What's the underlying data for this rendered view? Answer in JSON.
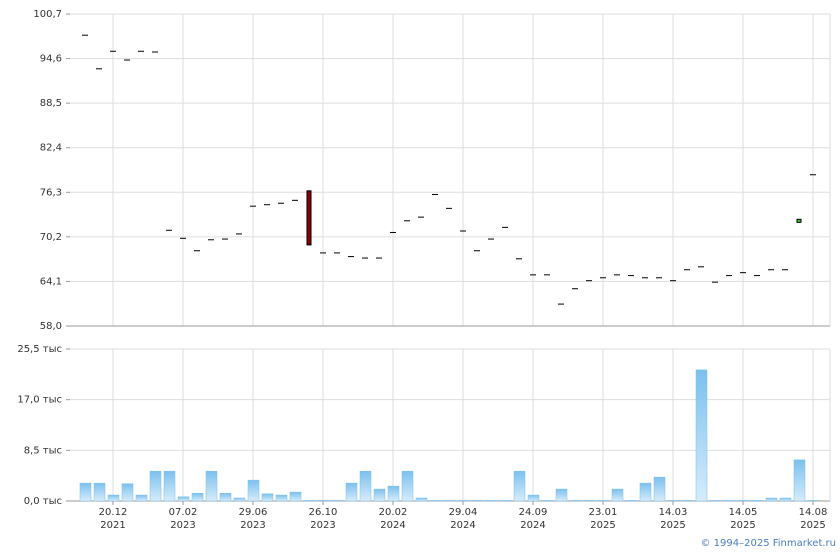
{
  "chart_data": [
    {
      "type": "candlestick",
      "open": [
        97.8,
        93.2,
        95.6,
        94.4,
        95.6,
        95.5,
        71.1,
        70.0,
        68.3,
        69.8,
        69.9,
        70.6,
        74.4,
        74.6,
        74.8,
        75.2,
        76.5,
        68.0,
        68.0,
        67.5,
        67.3,
        67.3,
        70.8,
        72.4,
        72.9,
        76.0,
        74.1,
        71.0,
        68.3,
        69.9,
        71.5,
        67.2,
        65.0,
        65.0,
        61.0,
        63.1,
        64.2,
        64.6,
        65.0,
        64.9,
        64.6,
        64.6,
        64.2,
        65.7,
        66.1,
        64.0,
        64.9,
        65.3,
        64.9,
        65.7,
        65.7,
        72.2,
        78.7
      ],
      "close": [
        97.8,
        93.2,
        95.6,
        94.4,
        95.6,
        95.5,
        71.1,
        70.0,
        68.3,
        69.8,
        69.9,
        70.6,
        74.4,
        74.6,
        74.8,
        75.2,
        69.1,
        68.0,
        68.0,
        67.5,
        67.3,
        67.3,
        70.8,
        72.4,
        72.9,
        76.0,
        74.1,
        71.0,
        68.3,
        69.9,
        71.5,
        67.2,
        65.0,
        65.0,
        61.0,
        63.1,
        64.2,
        64.6,
        65.0,
        64.9,
        64.6,
        64.6,
        64.2,
        65.7,
        66.1,
        64.0,
        64.9,
        65.3,
        64.9,
        65.7,
        65.7,
        72.6,
        78.7
      ],
      "up_color": "#33cc33",
      "down_color": "#8b0000",
      "ylim": [
        58.0,
        100.7
      ],
      "yticks": [
        {
          "value": 58.0,
          "label": "58,0"
        },
        {
          "value": 64.1,
          "label": "64,1"
        },
        {
          "value": 70.2,
          "label": "70,2"
        },
        {
          "value": 76.3,
          "label": "76,3"
        },
        {
          "value": 82.4,
          "label": "82,4"
        },
        {
          "value": 88.5,
          "label": "88,5"
        },
        {
          "value": 94.6,
          "label": "94,6"
        },
        {
          "value": 100.7,
          "label": "100,7"
        }
      ],
      "grid": true
    },
    {
      "type": "bar",
      "categories": [
        null,
        null,
        "20.12 2021",
        null,
        null,
        null,
        null,
        "07.02 2023",
        null,
        null,
        null,
        null,
        "29.06 2023",
        null,
        null,
        null,
        null,
        "26.10 2023",
        null,
        null,
        null,
        null,
        "20.02 2024",
        null,
        null,
        null,
        null,
        "29.04 2024",
        null,
        null,
        null,
        null,
        "24.09 2024",
        null,
        null,
        null,
        null,
        "23.01 2025",
        null,
        null,
        null,
        null,
        "14.03 2025",
        null,
        null,
        null,
        null,
        "14.05 2025",
        null,
        null,
        null,
        null,
        "14.08 2025"
      ],
      "values": [
        3.0,
        3.0,
        1.0,
        2.9,
        1.0,
        5.0,
        5.0,
        0.7,
        1.3,
        5.0,
        1.3,
        0.5,
        3.5,
        1.2,
        1.0,
        1.5,
        0.1,
        0.1,
        0.1,
        3.0,
        5.0,
        2.0,
        2.5,
        5.0,
        0.5,
        0.1,
        0.1,
        0.1,
        0.1,
        0.1,
        0.1,
        5.0,
        1.0,
        0.1,
        2.0,
        0.1,
        0.1,
        0.1,
        2.0,
        0.1,
        3.0,
        4.0,
        0.1,
        0.1,
        22.0,
        0.1,
        0.1,
        0.1,
        0.1,
        0.5,
        0.5,
        6.9,
        0.1
      ],
      "color": "#7cc0ee",
      "ylim": [
        0,
        25.5
      ],
      "yticks": [
        {
          "value": 0,
          "label": "0,0 тыс"
        },
        {
          "value": 8.5,
          "label": "8,5 тыс"
        },
        {
          "value": 17,
          "label": "17,0 тыс"
        },
        {
          "value": 25.5,
          "label": "25,5 тыс"
        }
      ],
      "grid": true
    }
  ],
  "footer": "© 1994–2025 Finmarket.ru"
}
